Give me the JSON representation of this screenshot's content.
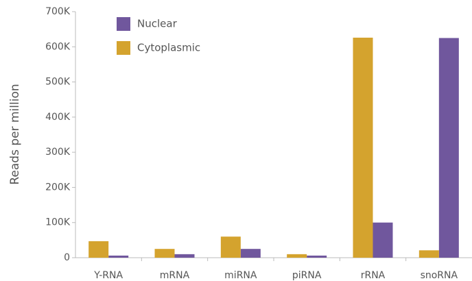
{
  "chart_data": {
    "type": "bar",
    "y_label": "Reads per million",
    "categories": [
      "Y-RNA",
      "mRNA",
      "miRNA",
      "piRNA",
      "rRNA",
      "snoRNA"
    ],
    "series": [
      {
        "name": "Nuclear",
        "color": "#70579d",
        "values": [
          6000,
          10000,
          25000,
          6000,
          100000,
          625000
        ]
      },
      {
        "name": "Cytoplasmic",
        "color": "#d4a32e",
        "values": [
          47000,
          25000,
          60000,
          10000,
          626000,
          21000
        ]
      }
    ],
    "ylim": [
      0,
      700000
    ],
    "yticks": [
      0,
      {
        "value": 100000,
        "label": "100K"
      },
      {
        "value": 200000,
        "label": "200K"
      },
      {
        "value": 300000,
        "label": "300K"
      },
      {
        "value": 400000,
        "label": "400K"
      },
      {
        "value": 500000,
        "label": "500K"
      },
      {
        "value": 600000,
        "label": "600K"
      },
      {
        "value": 700000,
        "label": "700K"
      }
    ],
    "legend": "top-left"
  }
}
